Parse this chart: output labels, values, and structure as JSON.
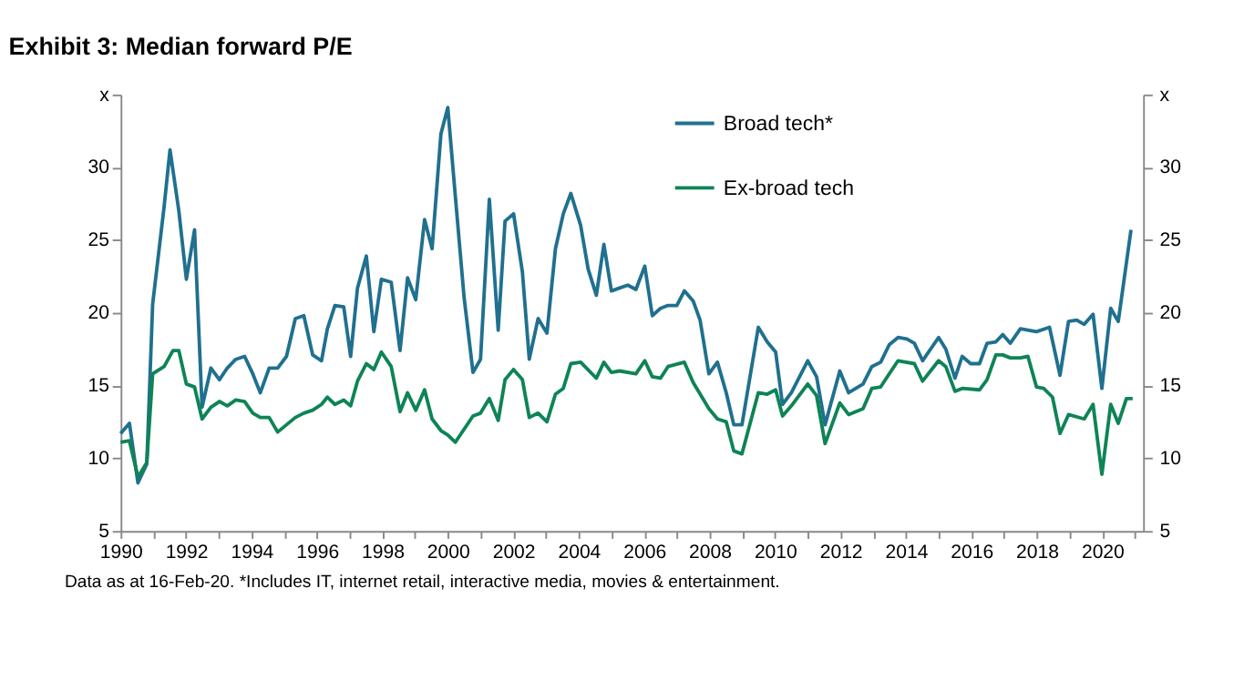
{
  "chart_data": {
    "type": "line",
    "title": "Exhibit 3: Median forward P/E",
    "annotations": [
      "Data as at 16-Feb-20. *Includes IT, internet retail, interactive media, movies & entertainment."
    ],
    "xlim": [
      1990,
      2021.25
    ],
    "xticks": [
      1990,
      {
        "value": 1991,
        "label": null
      },
      1992,
      {
        "value": 1993,
        "label": null
      },
      1994,
      {
        "value": 1995,
        "label": null
      },
      1996,
      {
        "value": 1997,
        "label": null
      },
      1998,
      {
        "value": 1999,
        "label": null
      },
      2000,
      {
        "value": 2001,
        "label": null
      },
      2002,
      {
        "value": 2003,
        "label": null
      },
      2004,
      {
        "value": 2005,
        "label": null
      },
      2006,
      {
        "value": 2007,
        "label": null
      },
      2008,
      {
        "value": 2009,
        "label": null
      },
      2010,
      {
        "value": 2011,
        "label": null
      },
      2012,
      {
        "value": 2013,
        "label": null
      },
      2014,
      {
        "value": 2015,
        "label": null
      },
      2016,
      {
        "value": 2017,
        "label": null
      },
      2018,
      {
        "value": 2019,
        "label": null
      },
      2020,
      {
        "value": 2021,
        "label": null
      }
    ],
    "ylim": [
      5,
      35
    ],
    "yticks": [
      5,
      10,
      15,
      20,
      25,
      30,
      {
        "value": 35,
        "label": "x"
      }
    ],
    "y2lim": [
      5,
      35
    ],
    "y2ticks": [
      5,
      10,
      15,
      20,
      25,
      30,
      {
        "value": 35,
        "label": "x"
      }
    ],
    "grid": false,
    "legend": "top",
    "marker": "none",
    "line_style": "solid",
    "series": [
      {
        "name": "Broad tech*",
        "color": "#20708f",
        "x": [
          1990.0,
          1990.27,
          1990.53,
          1990.8,
          1990.98,
          1991.33,
          1991.51,
          1991.78,
          1992.01,
          1992.26,
          1992.49,
          1992.76,
          1993.02,
          1993.26,
          1993.52,
          1993.79,
          1994.04,
          1994.27,
          1994.54,
          1994.8,
          1995.07,
          1995.34,
          1995.6,
          1995.87,
          1996.14,
          1996.32,
          1996.55,
          1996.82,
          1997.03,
          1997.24,
          1997.51,
          1997.74,
          1997.97,
          1998.27,
          1998.54,
          1998.77,
          1999.02,
          1999.29,
          1999.52,
          1999.79,
          2000.0,
          2000.23,
          2000.5,
          2000.77,
          2001.0,
          2001.27,
          2001.54,
          2001.75,
          2002.01,
          2002.28,
          2002.49,
          2002.76,
          2003.03,
          2003.29,
          2003.53,
          2003.76,
          2004.06,
          2004.29,
          2004.54,
          2004.77,
          2005.0,
          2005.25,
          2005.5,
          2005.75,
          2006.02,
          2006.25,
          2006.5,
          2006.73,
          2007.0,
          2007.23,
          2007.5,
          2007.71,
          2007.98,
          2008.24,
          2008.51,
          2008.74,
          2008.99,
          2009.49,
          2009.76,
          2010.02,
          2010.23,
          2010.5,
          2011.0,
          2011.27,
          2011.53,
          2011.98,
          2012.25,
          2012.69,
          2012.96,
          2013.23,
          2013.49,
          2013.76,
          2014.03,
          2014.26,
          2014.51,
          2015.0,
          2015.22,
          2015.5,
          2015.72,
          2015.98,
          2016.25,
          2016.48,
          2016.75,
          2016.96,
          2017.19,
          2017.5,
          2017.99,
          2018.39,
          2018.71,
          2018.97,
          2019.22,
          2019.45,
          2019.72,
          2019.99,
          2020.26,
          2020.49,
          2020.88
        ],
        "values": [
          11.7,
          12.4,
          8.3,
          9.6,
          20.6,
          27.3,
          31.2,
          27.0,
          22.3,
          25.7,
          13.5,
          16.2,
          15.4,
          16.2,
          16.8,
          17.0,
          15.8,
          14.5,
          16.2,
          16.2,
          17.0,
          19.6,
          19.8,
          17.1,
          16.7,
          18.9,
          20.5,
          20.4,
          17.0,
          21.7,
          23.9,
          18.7,
          22.3,
          22.1,
          17.4,
          22.4,
          20.9,
          26.4,
          24.4,
          32.3,
          34.1,
          28.0,
          21.0,
          15.9,
          16.8,
          27.8,
          18.8,
          26.3,
          26.8,
          22.8,
          16.8,
          19.6,
          18.6,
          24.4,
          26.8,
          28.2,
          26.0,
          23.0,
          21.2,
          24.7,
          21.5,
          21.7,
          21.9,
          21.6,
          23.2,
          19.8,
          20.3,
          20.5,
          20.5,
          21.5,
          20.8,
          19.5,
          15.8,
          16.6,
          14.5,
          12.3,
          12.3,
          19.0,
          18.0,
          17.3,
          13.7,
          14.5,
          16.7,
          15.6,
          12.3,
          16.0,
          14.5,
          15.1,
          16.3,
          16.6,
          17.8,
          18.3,
          18.2,
          17.9,
          16.7,
          18.3,
          17.5,
          15.5,
          17.0,
          16.5,
          16.5,
          17.9,
          18.0,
          18.5,
          17.9,
          18.9,
          18.7,
          19.0,
          15.7,
          19.4,
          19.5,
          19.2,
          19.9,
          14.8,
          20.3,
          19.4,
          25.7
        ]
      },
      {
        "name": "Ex-broad tech",
        "color": "#0e8456",
        "x": [
          1990.0,
          1990.27,
          1990.53,
          1990.8,
          1990.98,
          1991.33,
          1991.6,
          1991.78,
          1992.01,
          1992.26,
          1992.49,
          1992.76,
          1993.02,
          1993.26,
          1993.52,
          1993.79,
          1994.04,
          1994.27,
          1994.54,
          1994.8,
          1995.07,
          1995.34,
          1995.6,
          1995.87,
          1996.14,
          1996.32,
          1996.55,
          1996.82,
          1997.03,
          1997.24,
          1997.51,
          1997.74,
          1997.97,
          1998.27,
          1998.54,
          1998.77,
          1999.02,
          1999.29,
          1999.52,
          1999.79,
          2000.0,
          2000.23,
          2000.77,
          2001.0,
          2001.27,
          2001.54,
          2001.75,
          2002.01,
          2002.28,
          2002.49,
          2002.76,
          2003.03,
          2003.29,
          2003.53,
          2003.76,
          2004.06,
          2004.54,
          2004.77,
          2005.0,
          2005.25,
          2005.75,
          2006.02,
          2006.25,
          2006.5,
          2006.73,
          2007.23,
          2007.5,
          2007.98,
          2008.24,
          2008.51,
          2008.74,
          2008.99,
          2009.49,
          2009.76,
          2010.02,
          2010.23,
          2010.5,
          2011.0,
          2011.27,
          2011.53,
          2011.98,
          2012.25,
          2012.69,
          2012.96,
          2013.23,
          2013.49,
          2013.76,
          2014.26,
          2014.51,
          2015.0,
          2015.22,
          2015.5,
          2015.72,
          2016.25,
          2016.48,
          2016.75,
          2016.96,
          2017.19,
          2017.5,
          2017.73,
          2017.99,
          2018.21,
          2018.48,
          2018.71,
          2018.97,
          2019.45,
          2019.72,
          2019.99,
          2020.26,
          2020.49,
          2020.74,
          2020.93
        ],
        "values": [
          11.1,
          11.2,
          8.7,
          9.7,
          15.8,
          16.3,
          17.4,
          17.4,
          15.1,
          14.9,
          12.7,
          13.5,
          13.9,
          13.6,
          14.0,
          13.9,
          13.1,
          12.8,
          12.8,
          11.8,
          12.3,
          12.8,
          13.1,
          13.3,
          13.7,
          14.2,
          13.7,
          14.0,
          13.6,
          15.3,
          16.5,
          16.1,
          17.3,
          16.3,
          13.2,
          14.5,
          13.3,
          14.7,
          12.7,
          11.9,
          11.6,
          11.1,
          12.9,
          13.1,
          14.1,
          12.6,
          15.4,
          16.1,
          15.4,
          12.8,
          13.1,
          12.5,
          14.4,
          14.8,
          16.5,
          16.6,
          15.5,
          16.6,
          15.9,
          16.0,
          15.8,
          16.7,
          15.6,
          15.5,
          16.3,
          16.6,
          15.2,
          13.4,
          12.7,
          12.5,
          10.5,
          10.3,
          14.5,
          14.4,
          14.7,
          12.9,
          13.6,
          15.1,
          14.3,
          11.0,
          13.8,
          13.0,
          13.4,
          14.8,
          14.9,
          15.8,
          16.7,
          16.5,
          15.3,
          16.7,
          16.3,
          14.6,
          14.8,
          14.7,
          15.4,
          17.1,
          17.1,
          16.9,
          16.9,
          17.0,
          14.9,
          14.8,
          14.2,
          11.7,
          13.0,
          12.7,
          13.7,
          8.9,
          13.7,
          12.4,
          14.1,
          14.1
        ]
      }
    ]
  }
}
